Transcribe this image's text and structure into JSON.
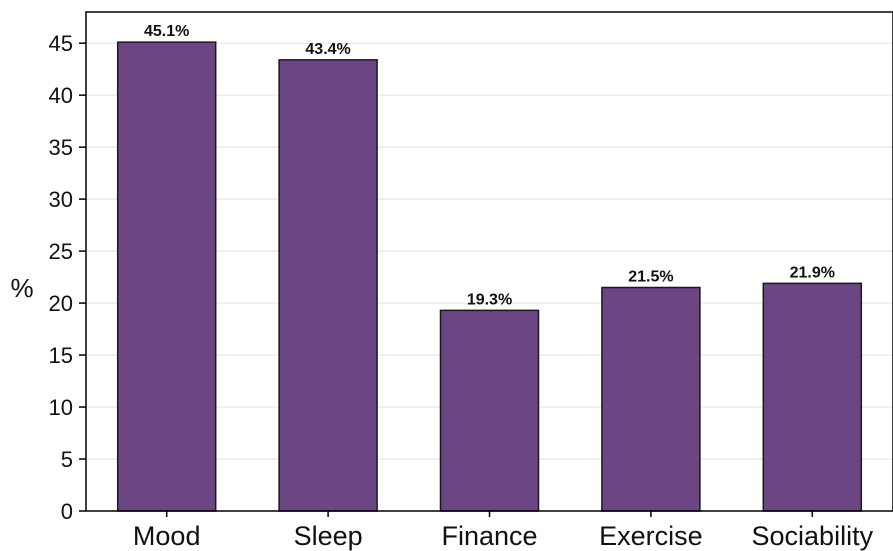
{
  "chart_data": {
    "type": "bar",
    "categories": [
      "Mood",
      "Sleep",
      "Finance",
      "Exercise",
      "Sociability"
    ],
    "values": [
      45.1,
      43.4,
      19.3,
      21.5,
      21.9
    ],
    "data_labels": [
      "45.1%",
      "43.4%",
      "19.3%",
      "21.5%",
      "21.9%"
    ],
    "title": "",
    "xlabel": "",
    "ylabel": "%",
    "ylim": [
      0,
      48
    ],
    "yticks": [
      0,
      5,
      10,
      15,
      20,
      25,
      30,
      35,
      40,
      45
    ],
    "ytick_labels": [
      "0",
      "5",
      "10",
      "15",
      "20",
      "25",
      "30",
      "35",
      "40",
      "45"
    ],
    "grid": "horizontal",
    "legend": "none",
    "bar_color": "#6b4584",
    "bar_edge_color": "#1a1a1a"
  }
}
